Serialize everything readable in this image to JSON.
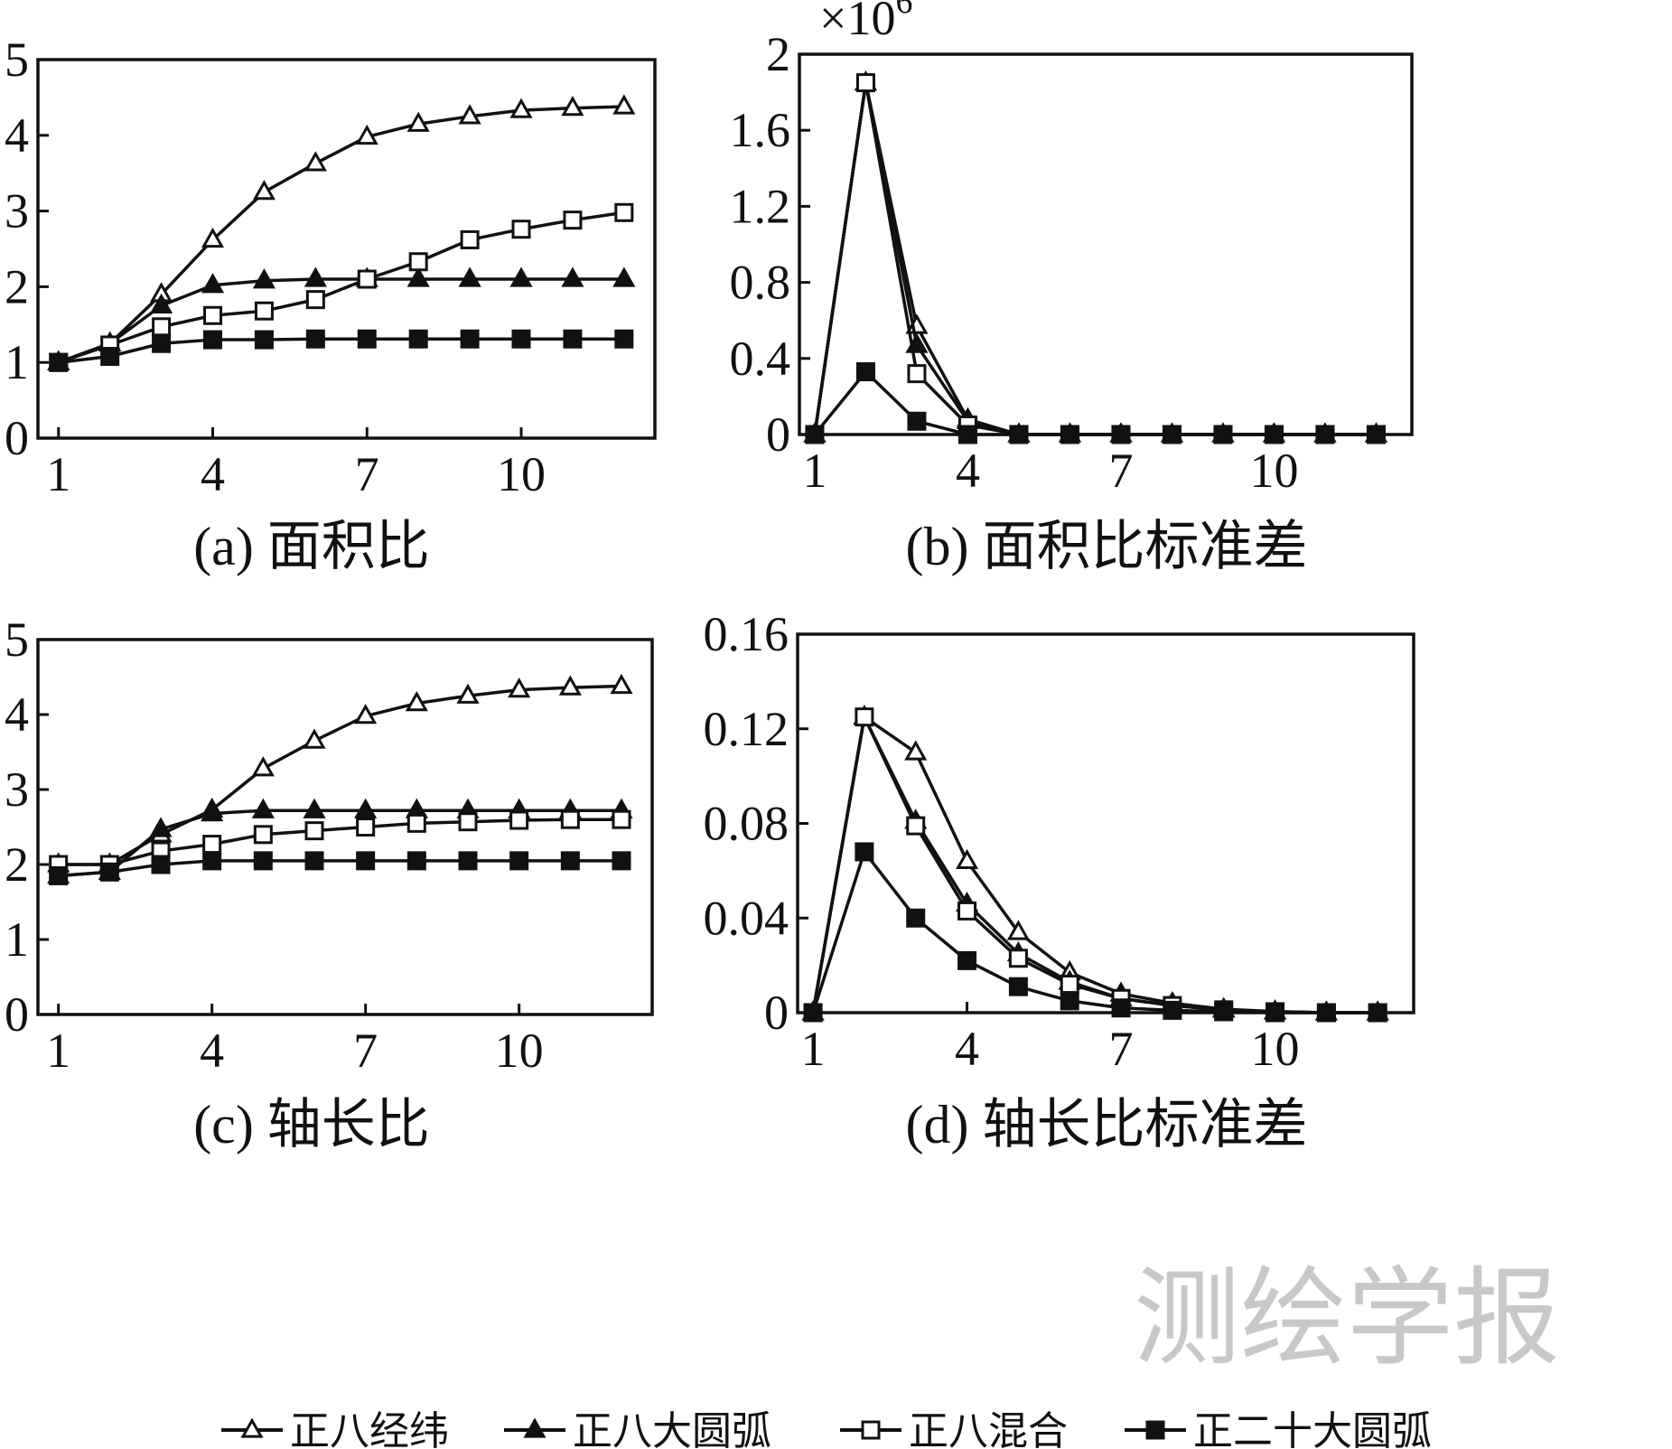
{
  "watermark": "测绘学报",
  "legend": [
    {
      "label": "正八经纬",
      "marker": "triangle-open"
    },
    {
      "label": "正八大圆弧",
      "marker": "triangle-filled"
    },
    {
      "label": "正八混合",
      "marker": "square-open"
    },
    {
      "label": "正二十大圆弧",
      "marker": "square-filled"
    }
  ],
  "chart_data": [
    {
      "type": "line",
      "caption": "(a) 面积比",
      "x": [
        1,
        2,
        3,
        4,
        5,
        6,
        7,
        8,
        9,
        10,
        11,
        12
      ],
      "xticks": [
        "1",
        "4",
        "7",
        "10"
      ],
      "yticks": [
        "0",
        "1",
        "2",
        "3",
        "4",
        "5"
      ],
      "ylim": [
        0,
        5
      ],
      "xlim": [
        0.6,
        12.6
      ],
      "series": [
        {
          "name": "正八经纬",
          "values": [
            1.0,
            1.25,
            1.9,
            2.62,
            3.25,
            3.63,
            3.98,
            4.15,
            4.25,
            4.33,
            4.36,
            4.38
          ]
        },
        {
          "name": "正八大圆弧",
          "values": [
            1.0,
            1.25,
            1.75,
            2.02,
            2.08,
            2.1,
            2.1,
            2.1,
            2.1,
            2.1,
            2.1,
            2.1
          ]
        },
        {
          "name": "正八混合",
          "values": [
            1.0,
            1.23,
            1.47,
            1.62,
            1.68,
            1.83,
            2.1,
            2.33,
            2.62,
            2.76,
            2.88,
            2.98
          ]
        },
        {
          "name": "正二十大圆弧",
          "values": [
            1.0,
            1.08,
            1.25,
            1.3,
            1.3,
            1.31,
            1.31,
            1.31,
            1.31,
            1.31,
            1.31,
            1.31
          ]
        }
      ]
    },
    {
      "type": "line",
      "caption": "(b) 面积比标准差",
      "multiplier": "×10",
      "multiplier_exp": "6",
      "x": [
        1,
        2,
        3,
        4,
        5,
        6,
        7,
        8,
        9,
        10,
        11,
        12
      ],
      "xticks": [
        "1",
        "4",
        "7",
        "10"
      ],
      "yticks": [
        "0",
        "0.4",
        "0.8",
        "1.2",
        "1.6",
        "2"
      ],
      "ylim": [
        0,
        2
      ],
      "xlim": [
        0.7,
        12.7
      ],
      "series": [
        {
          "name": "正八经纬",
          "values": [
            0,
            1.85,
            0.57,
            0.08,
            0,
            0,
            0,
            0,
            0,
            0,
            0,
            0
          ]
        },
        {
          "name": "正八大圆弧",
          "values": [
            0,
            1.85,
            0.47,
            0.07,
            0,
            0,
            0,
            0,
            0,
            0,
            0,
            0
          ]
        },
        {
          "name": "正八混合",
          "values": [
            0,
            1.85,
            0.32,
            0.05,
            0,
            0,
            0,
            0,
            0,
            0,
            0,
            0
          ]
        },
        {
          "name": "正二十大圆弧",
          "values": [
            0,
            0.33,
            0.07,
            0,
            0,
            0,
            0,
            0,
            0,
            0,
            0,
            0
          ]
        }
      ]
    },
    {
      "type": "line",
      "caption": "(c) 轴长比",
      "x": [
        1,
        2,
        3,
        4,
        5,
        6,
        7,
        8,
        9,
        10,
        11,
        12
      ],
      "xticks": [
        "1",
        "4",
        "7",
        "10"
      ],
      "yticks": [
        "0",
        "1",
        "2",
        "3",
        "4",
        "5"
      ],
      "ylim": [
        0,
        5
      ],
      "xlim": [
        0.6,
        12.6
      ],
      "series": [
        {
          "name": "正八经纬",
          "values": [
            2.0,
            2.0,
            2.4,
            2.73,
            3.28,
            3.65,
            3.98,
            4.15,
            4.25,
            4.33,
            4.36,
            4.38
          ]
        },
        {
          "name": "正八大圆弧",
          "values": [
            1.85,
            1.9,
            2.47,
            2.68,
            2.72,
            2.72,
            2.72,
            2.72,
            2.72,
            2.72,
            2.72,
            2.72
          ]
        },
        {
          "name": "正八混合",
          "values": [
            2.0,
            2.0,
            2.18,
            2.27,
            2.4,
            2.45,
            2.5,
            2.55,
            2.57,
            2.59,
            2.6,
            2.6
          ]
        },
        {
          "name": "正二十大圆弧",
          "values": [
            1.85,
            1.9,
            2.0,
            2.05,
            2.05,
            2.05,
            2.05,
            2.05,
            2.05,
            2.05,
            2.05,
            2.05
          ]
        }
      ]
    },
    {
      "type": "line",
      "caption": "(d) 轴长比标准差",
      "x": [
        1,
        2,
        3,
        4,
        5,
        6,
        7,
        8,
        9,
        10,
        11,
        12
      ],
      "xticks": [
        "1",
        "4",
        "7",
        "10"
      ],
      "yticks": [
        "0",
        "0.04",
        "0.08",
        "0.12",
        "0.16"
      ],
      "ylim": [
        0,
        0.16
      ],
      "xlim": [
        0.7,
        12.7
      ],
      "series": [
        {
          "name": "正八经纬",
          "values": [
            0,
            0.125,
            0.11,
            0.064,
            0.034,
            0.017,
            0.008,
            0.004,
            0.0015,
            0.0005,
            0,
            0
          ]
        },
        {
          "name": "正八大圆弧",
          "values": [
            0,
            0.125,
            0.081,
            0.046,
            0.025,
            0.013,
            0.006,
            0.003,
            0.0012,
            0.0004,
            0,
            0
          ]
        },
        {
          "name": "正八混合",
          "values": [
            0,
            0.125,
            0.079,
            0.043,
            0.023,
            0.012,
            0.006,
            0.003,
            0.0012,
            0.0004,
            0,
            0
          ]
        },
        {
          "name": "正二十大圆弧",
          "values": [
            0,
            0.068,
            0.04,
            0.022,
            0.011,
            0.005,
            0.002,
            0.001,
            0.0004,
            0,
            0,
            0
          ]
        }
      ]
    }
  ]
}
